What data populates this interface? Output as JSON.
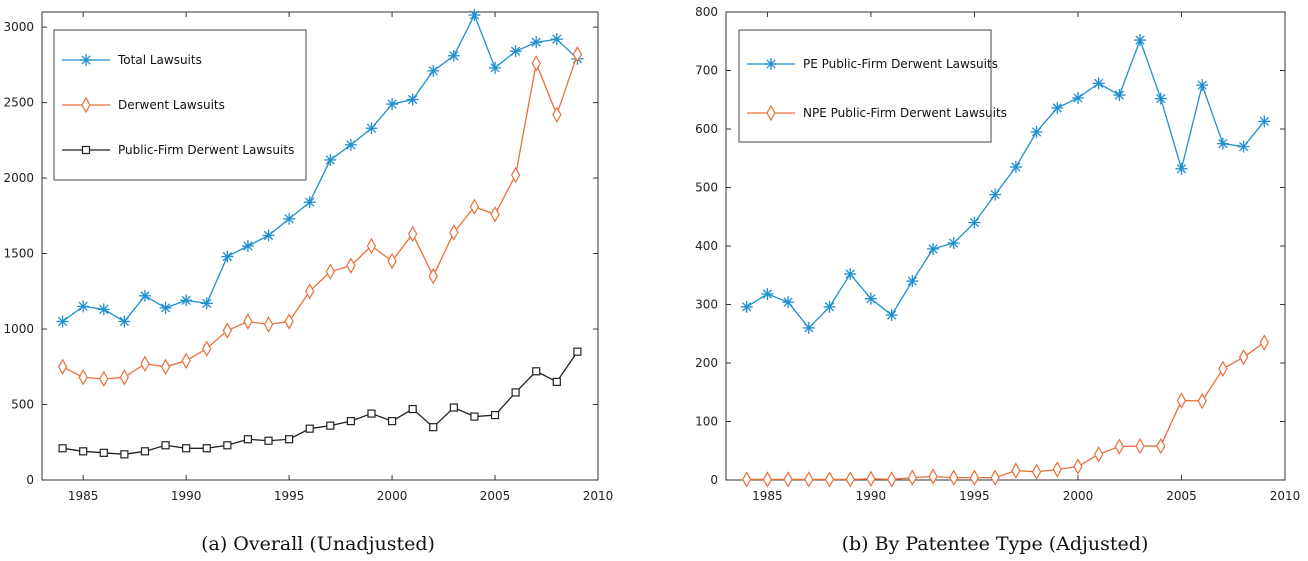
{
  "chart_data": [
    {
      "type": "line",
      "caption": "(a)  Overall (Unadjusted)",
      "xlim": [
        1983,
        2010
      ],
      "ylim": [
        0,
        3100
      ],
      "xticks": [
        1985,
        1990,
        1995,
        2000,
        2005,
        2010
      ],
      "yticks": [
        0,
        500,
        1000,
        1500,
        2000,
        2500,
        3000
      ],
      "legend_position": "top-left",
      "x": [
        1984,
        1985,
        1986,
        1987,
        1988,
        1989,
        1990,
        1991,
        1992,
        1993,
        1994,
        1995,
        1996,
        1997,
        1998,
        1999,
        2000,
        2001,
        2002,
        2003,
        2004,
        2005,
        2006,
        2007,
        2008,
        2009
      ],
      "series": [
        {
          "name": "Total Lawsuits",
          "color": "#1f8fd0",
          "marker": "star",
          "values": [
            1050,
            1150,
            1130,
            1050,
            1220,
            1140,
            1190,
            1170,
            1480,
            1550,
            1620,
            1730,
            1840,
            2120,
            2220,
            2330,
            2490,
            2520,
            2710,
            2810,
            3080,
            2730,
            2840,
            2900,
            2920,
            2790
          ]
        },
        {
          "name": "Derwent Lawsuits",
          "color": "#e8703a",
          "marker": "diamond",
          "values": [
            750,
            680,
            670,
            680,
            770,
            750,
            790,
            870,
            990,
            1050,
            1030,
            1050,
            1250,
            1380,
            1420,
            1550,
            1450,
            1630,
            1350,
            1640,
            1810,
            1760,
            2020,
            2760,
            2420,
            2820
          ]
        },
        {
          "name": "Public-Firm Derwent Lawsuits",
          "color": "#222222",
          "marker": "square",
          "values": [
            210,
            190,
            180,
            170,
            190,
            230,
            210,
            210,
            230,
            270,
            260,
            270,
            340,
            360,
            390,
            440,
            390,
            470,
            350,
            480,
            420,
            430,
            580,
            720,
            650,
            850
          ]
        }
      ]
    },
    {
      "type": "line",
      "caption": "(b)  By Patentee Type (Adjusted)",
      "xlim": [
        1983,
        2010
      ],
      "ylim": [
        0,
        800
      ],
      "xticks": [
        1985,
        1990,
        1995,
        2000,
        2005,
        2010
      ],
      "yticks": [
        0,
        100,
        200,
        300,
        400,
        500,
        600,
        700,
        800
      ],
      "legend_position": "top-left",
      "x": [
        1984,
        1985,
        1986,
        1987,
        1988,
        1989,
        1990,
        1991,
        1992,
        1993,
        1994,
        1995,
        1996,
        1997,
        1998,
        1999,
        2000,
        2001,
        2002,
        2003,
        2004,
        2005,
        2006,
        2007,
        2008,
        2009
      ],
      "series": [
        {
          "name": "PE Public-Firm Derwent Lawsuits",
          "color": "#1f8fd0",
          "marker": "star",
          "values": [
            296,
            318,
            304,
            260,
            296,
            352,
            310,
            282,
            340,
            395,
            405,
            440,
            488,
            535,
            595,
            636,
            653,
            678,
            658,
            752,
            652,
            532,
            675,
            575,
            570,
            613
          ]
        },
        {
          "name": "NPE Public-Firm Derwent Lawsuits",
          "color": "#e8703a",
          "marker": "diamond",
          "values": [
            1,
            1,
            1,
            1,
            1,
            1,
            2,
            1,
            4,
            6,
            4,
            4,
            4,
            16,
            14,
            18,
            23,
            44,
            57,
            58,
            58,
            136,
            135,
            190,
            210,
            235
          ]
        }
      ]
    }
  ]
}
